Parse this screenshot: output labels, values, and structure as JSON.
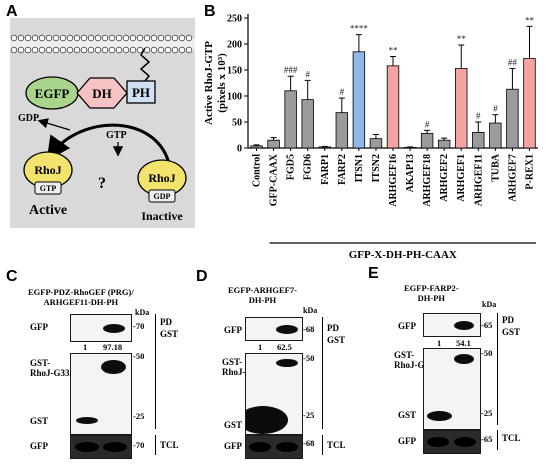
{
  "panels": {
    "a": {
      "label": "A",
      "egfp": "EGFP",
      "dh": "DH",
      "ph": "PH",
      "gdp": "GDP",
      "gtp": "GTP",
      "rhoj": "RhoJ",
      "question": "?",
      "active": "Active",
      "inactive": "Inactive"
    },
    "b": {
      "label": "B"
    },
    "c": {
      "label": "C",
      "title": "EGFP-PDZ-RhoGEF (PRG)/\nARHGEF11-DH-PH",
      "kda": "kDa",
      "rows": {
        "gfp": "GFP",
        "gst_rhoj": "GST-\nRhoJ-G33A",
        "gst": "GST",
        "gfp_tcl": "GFP"
      },
      "quant": [
        "1",
        "97.18"
      ],
      "mw": [
        "-70",
        "-50",
        "-25",
        "-70"
      ],
      "pd": "PD\nGST",
      "tcl": "TCL"
    },
    "d": {
      "label": "D",
      "title": "EGFP-ARHGEF7-\nDH-PH",
      "kda": "kDa",
      "rows": {
        "gfp": "GFP",
        "gst_rhoj": "GST-\nRhoJ-G33A",
        "gst": "GST",
        "gfp_tcl": "GFP"
      },
      "quant": [
        "1",
        "62.5"
      ],
      "mw": [
        "-68",
        "-50",
        "-25",
        "-68"
      ],
      "pd": "PD\nGST",
      "tcl": "TCL"
    },
    "e": {
      "label": "E",
      "title": "EGFP-FARP2-\nDH-PH",
      "kda": "kDa",
      "rows": {
        "gfp": "GFP",
        "gst_rhoj": "GST-\nRhoJ-G33A",
        "gst": "GST",
        "gfp_tcl": "GFP"
      },
      "quant": [
        "1",
        "54.1"
      ],
      "mw": [
        "-65",
        "-50",
        "-25",
        "-65"
      ],
      "pd": "PD\nGST",
      "tcl": "TCL"
    }
  },
  "chart_data": {
    "type": "bar",
    "ylabel": "Active RhoJ-GTP\n(pixels x 10³)",
    "xlabel": "GFP-X-DH-PH-CAAX",
    "ylim": [
      0,
      250
    ],
    "yticks": [
      0,
      50,
      100,
      150,
      200,
      250
    ],
    "categories": [
      "Control",
      "GFP-CAAX",
      "FGD5",
      "FGD6",
      "FARP1",
      "FARP2",
      "ITSN1",
      "ITSN2",
      "ARHGEF16",
      "AKAP13",
      "ARHGEF18",
      "ARHGEF2",
      "ARHGEF1",
      "ARHGEF11",
      "TUBA",
      "ARHGEF7",
      "P-REX1"
    ],
    "values": [
      4,
      15,
      110,
      93,
      2,
      68,
      185,
      18,
      158,
      1,
      28,
      15,
      153,
      30,
      48,
      113,
      172
    ],
    "errors": [
      2,
      5,
      28,
      37,
      1,
      28,
      33,
      8,
      18,
      1,
      6,
      4,
      45,
      20,
      16,
      40,
      62
    ],
    "colors": [
      "#9b9b9b",
      "#9b9b9b",
      "#9b9b9b",
      "#9b9b9b",
      "#9b9b9b",
      "#9b9b9b",
      "#8fb7e8",
      "#9b9b9b",
      "#f4a3a3",
      "#9b9b9b",
      "#9b9b9b",
      "#9b9b9b",
      "#f4a3a3",
      "#9b9b9b",
      "#9b9b9b",
      "#9b9b9b",
      "#f4a3a3"
    ],
    "annotations": [
      "",
      "",
      "###",
      "#",
      "",
      "#",
      "****",
      "",
      "**",
      "",
      "#",
      "",
      "**",
      "#",
      "#",
      "##",
      "**"
    ]
  }
}
